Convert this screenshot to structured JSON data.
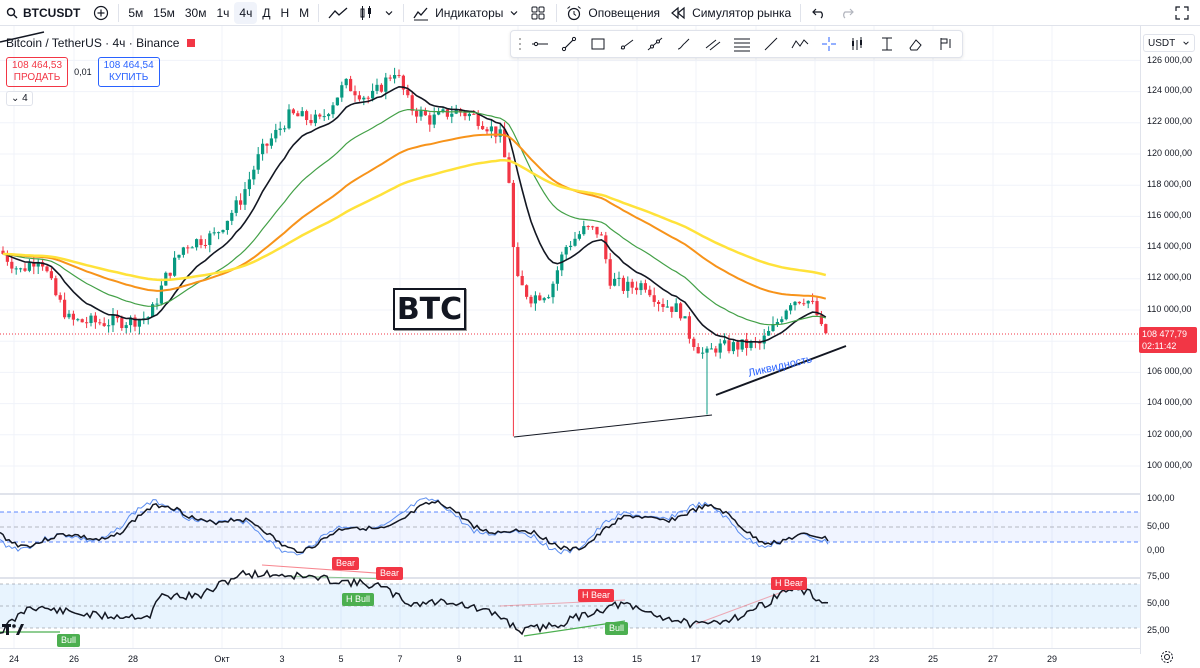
{
  "toolbar": {
    "symbol": "BTCUSDT",
    "intervals": [
      "5м",
      "15м",
      "30м",
      "1ч",
      "4ч",
      "Д",
      "Н",
      "М"
    ],
    "active_interval": "4ч",
    "indicators_label": "Индикаторы",
    "alerts_label": "Оповещения",
    "replay_label": "Симулятор рынка"
  },
  "legend": {
    "title": "Bitcoin / TetherUS · 4ч · Binance",
    "sell_price": "108 464,53",
    "sell_label": "ПРОДАТЬ",
    "spread": "0,01",
    "buy_price": "108 464,54",
    "buy_label": "КУПИТЬ",
    "indicator_count": "4"
  },
  "price_axis": {
    "currency": "USDT",
    "labels": [
      "126 000,00",
      "124 000,00",
      "122 000,00",
      "120 000,00",
      "118 000,00",
      "116 000,00",
      "114 000,00",
      "112 000,00",
      "110 000,00",
      "106 000,00",
      "104 000,00",
      "102 000,00",
      "100 000,00"
    ],
    "current_price": "108 477,79",
    "countdown": "02:11:42",
    "osc1_labels": [
      "100,00",
      "50,00",
      "0,00"
    ],
    "osc2_labels": [
      "75,00",
      "50,00",
      "25,00"
    ]
  },
  "time_axis": {
    "labels": [
      "24",
      "26",
      "28",
      "Окт",
      "3",
      "5",
      "7",
      "9",
      "11",
      "13",
      "15",
      "17",
      "19",
      "21",
      "23",
      "25",
      "27",
      "29"
    ]
  },
  "annotations": {
    "btc": "BTC",
    "liquidity": "Ликвидность",
    "tags": [
      "Bear",
      "Bear",
      "H Bull",
      "H Bear",
      "Bull",
      "Bull",
      "H Bear"
    ]
  },
  "colors": {
    "up": "#089981",
    "down": "#f23645",
    "ema_fast": "#131722",
    "ema_mid": "#43a047",
    "ema_slow": "#f7931a",
    "ema_long": "#ffe23a",
    "accent": "#2962ff"
  }
}
